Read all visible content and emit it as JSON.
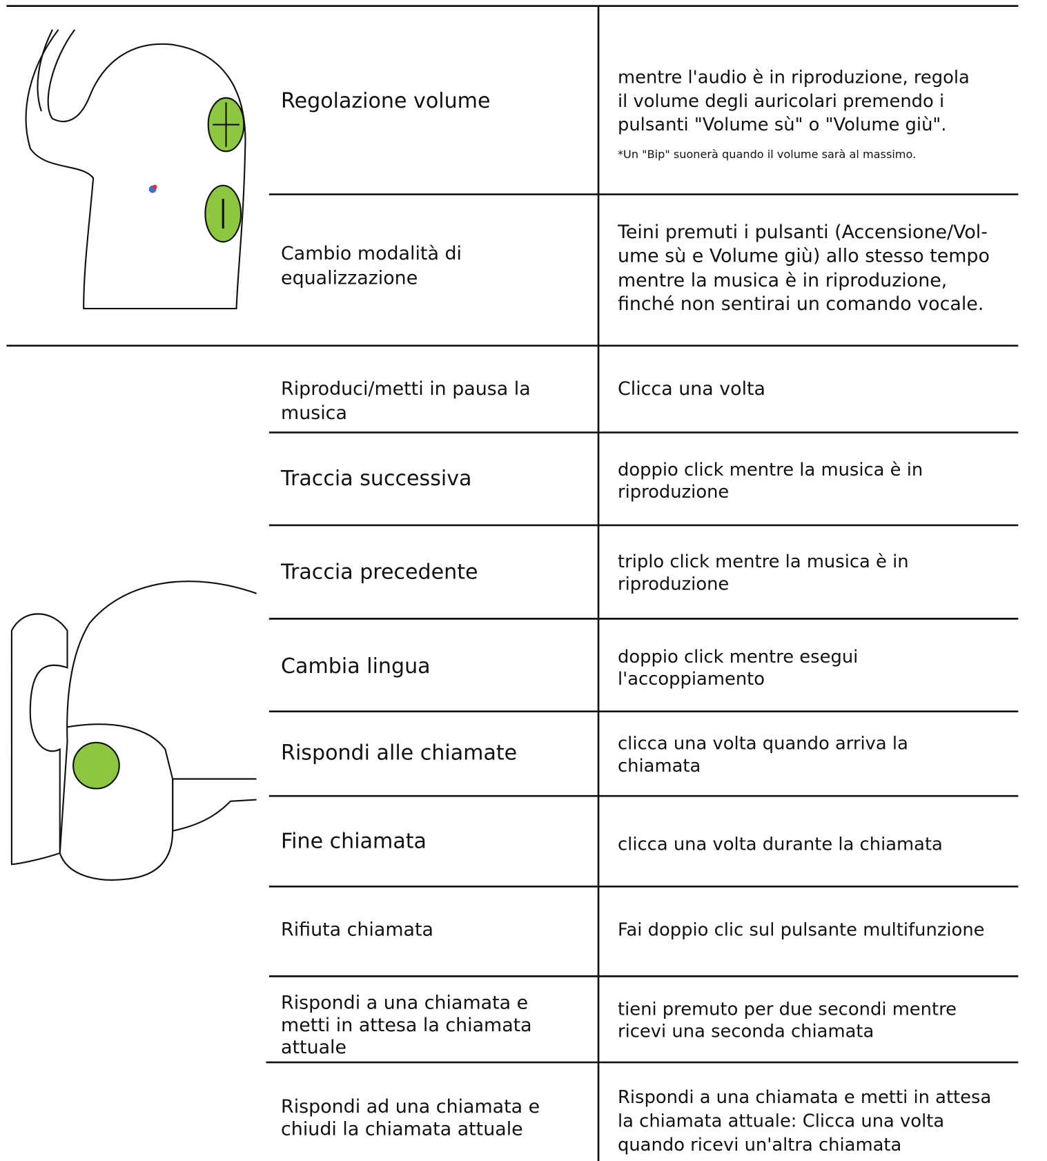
{
  "rows": [
    {
      "action": [
        "Regolazione volume"
      ],
      "description": [
        "mentre l'audio è in riproduzione, regola",
        "il volume degli auricolari premendo i",
        "pulsanti \"Volume sù\" o \"Volume giù\"."
      ],
      "note": "*Un \"Bip\" suonerà quando il volume sarà al massimo."
    },
    {
      "action": [
        "Cambio modalità di",
        "equalizzazione"
      ],
      "description": [
        "Teini premuti i pulsanti (Accensione/Vol-",
        "ume sù e Volume giù) allo stesso tempo",
        "mentre la musica è in riproduzione,",
        "finché non sentirai un comando vocale."
      ]
    },
    {
      "action": [
        "Riproduci/metti in pausa la",
        "musica"
      ],
      "description": [
        "Clicca una volta"
      ]
    },
    {
      "action": [
        "Traccia successiva"
      ],
      "description": [
        "doppio click mentre la musica è in",
        "riproduzione"
      ]
    },
    {
      "action": [
        "Traccia precedente"
      ],
      "description": [
        "triplo click mentre la musica è in",
        "riproduzione"
      ]
    },
    {
      "action": [
        "Cambia lingua"
      ],
      "description": [
        "doppio click mentre esegui",
        "l'accoppiamento"
      ]
    },
    {
      "action": [
        "Rispondi alle chiamate"
      ],
      "description": [
        "clicca una volta quando arriva la",
        "chiamata"
      ]
    },
    {
      "action": [
        "Fine chiamata"
      ],
      "description": [
        "clicca una volta durante la chiamata"
      ]
    },
    {
      "action": [
        "Rifiuta chiamata"
      ],
      "description": [
        "Fai doppio clic sul pulsante multifunzione"
      ]
    },
    {
      "action": [
        "Rispondi a una chiamata e",
        "metti in attesa la chiamata",
        "attuale"
      ],
      "description": [
        "tieni premuto per due secondi mentre",
        "ricevi una seconda chiamata"
      ]
    },
    {
      "action": [
        "Rispondi ad una chiamata e",
        "chiudi la chiamata attuale"
      ],
      "description": [
        "Rispondi a una chiamata e metti in attesa",
        "la chiamata attuale: Clicca una volta",
        "quando ricevi un'altra chiamata"
      ]
    }
  ]
}
